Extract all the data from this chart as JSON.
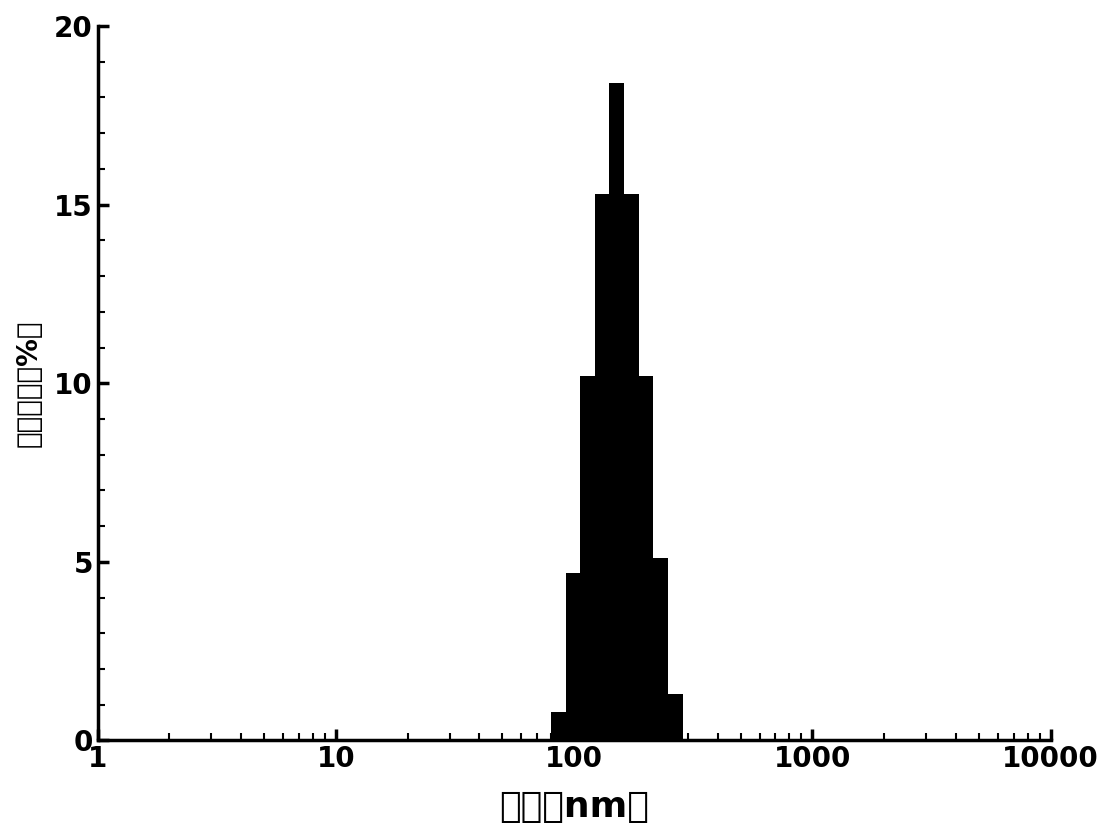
{
  "xlabel": "粒径（nm）",
  "ylabel": "频率分布（%）",
  "bar_color": "#000000",
  "background_color": "#ffffff",
  "xlim_log": [
    1,
    10000
  ],
  "ylim": [
    0,
    20
  ],
  "yticks": [
    0,
    5,
    10,
    15,
    20
  ],
  "xticks": [
    1,
    10,
    100,
    1000,
    10000
  ],
  "bin_edges": [
    80,
    92,
    106,
    122,
    140,
    162,
    187,
    215,
    248,
    286,
    330
  ],
  "bar_heights": [
    0.8,
    4.7,
    10.2,
    15.3,
    18.4,
    15.3,
    10.2,
    5.1,
    1.3,
    0.0
  ],
  "xlabel_fontsize": 26,
  "ylabel_fontsize": 20,
  "tick_fontsize": 20
}
